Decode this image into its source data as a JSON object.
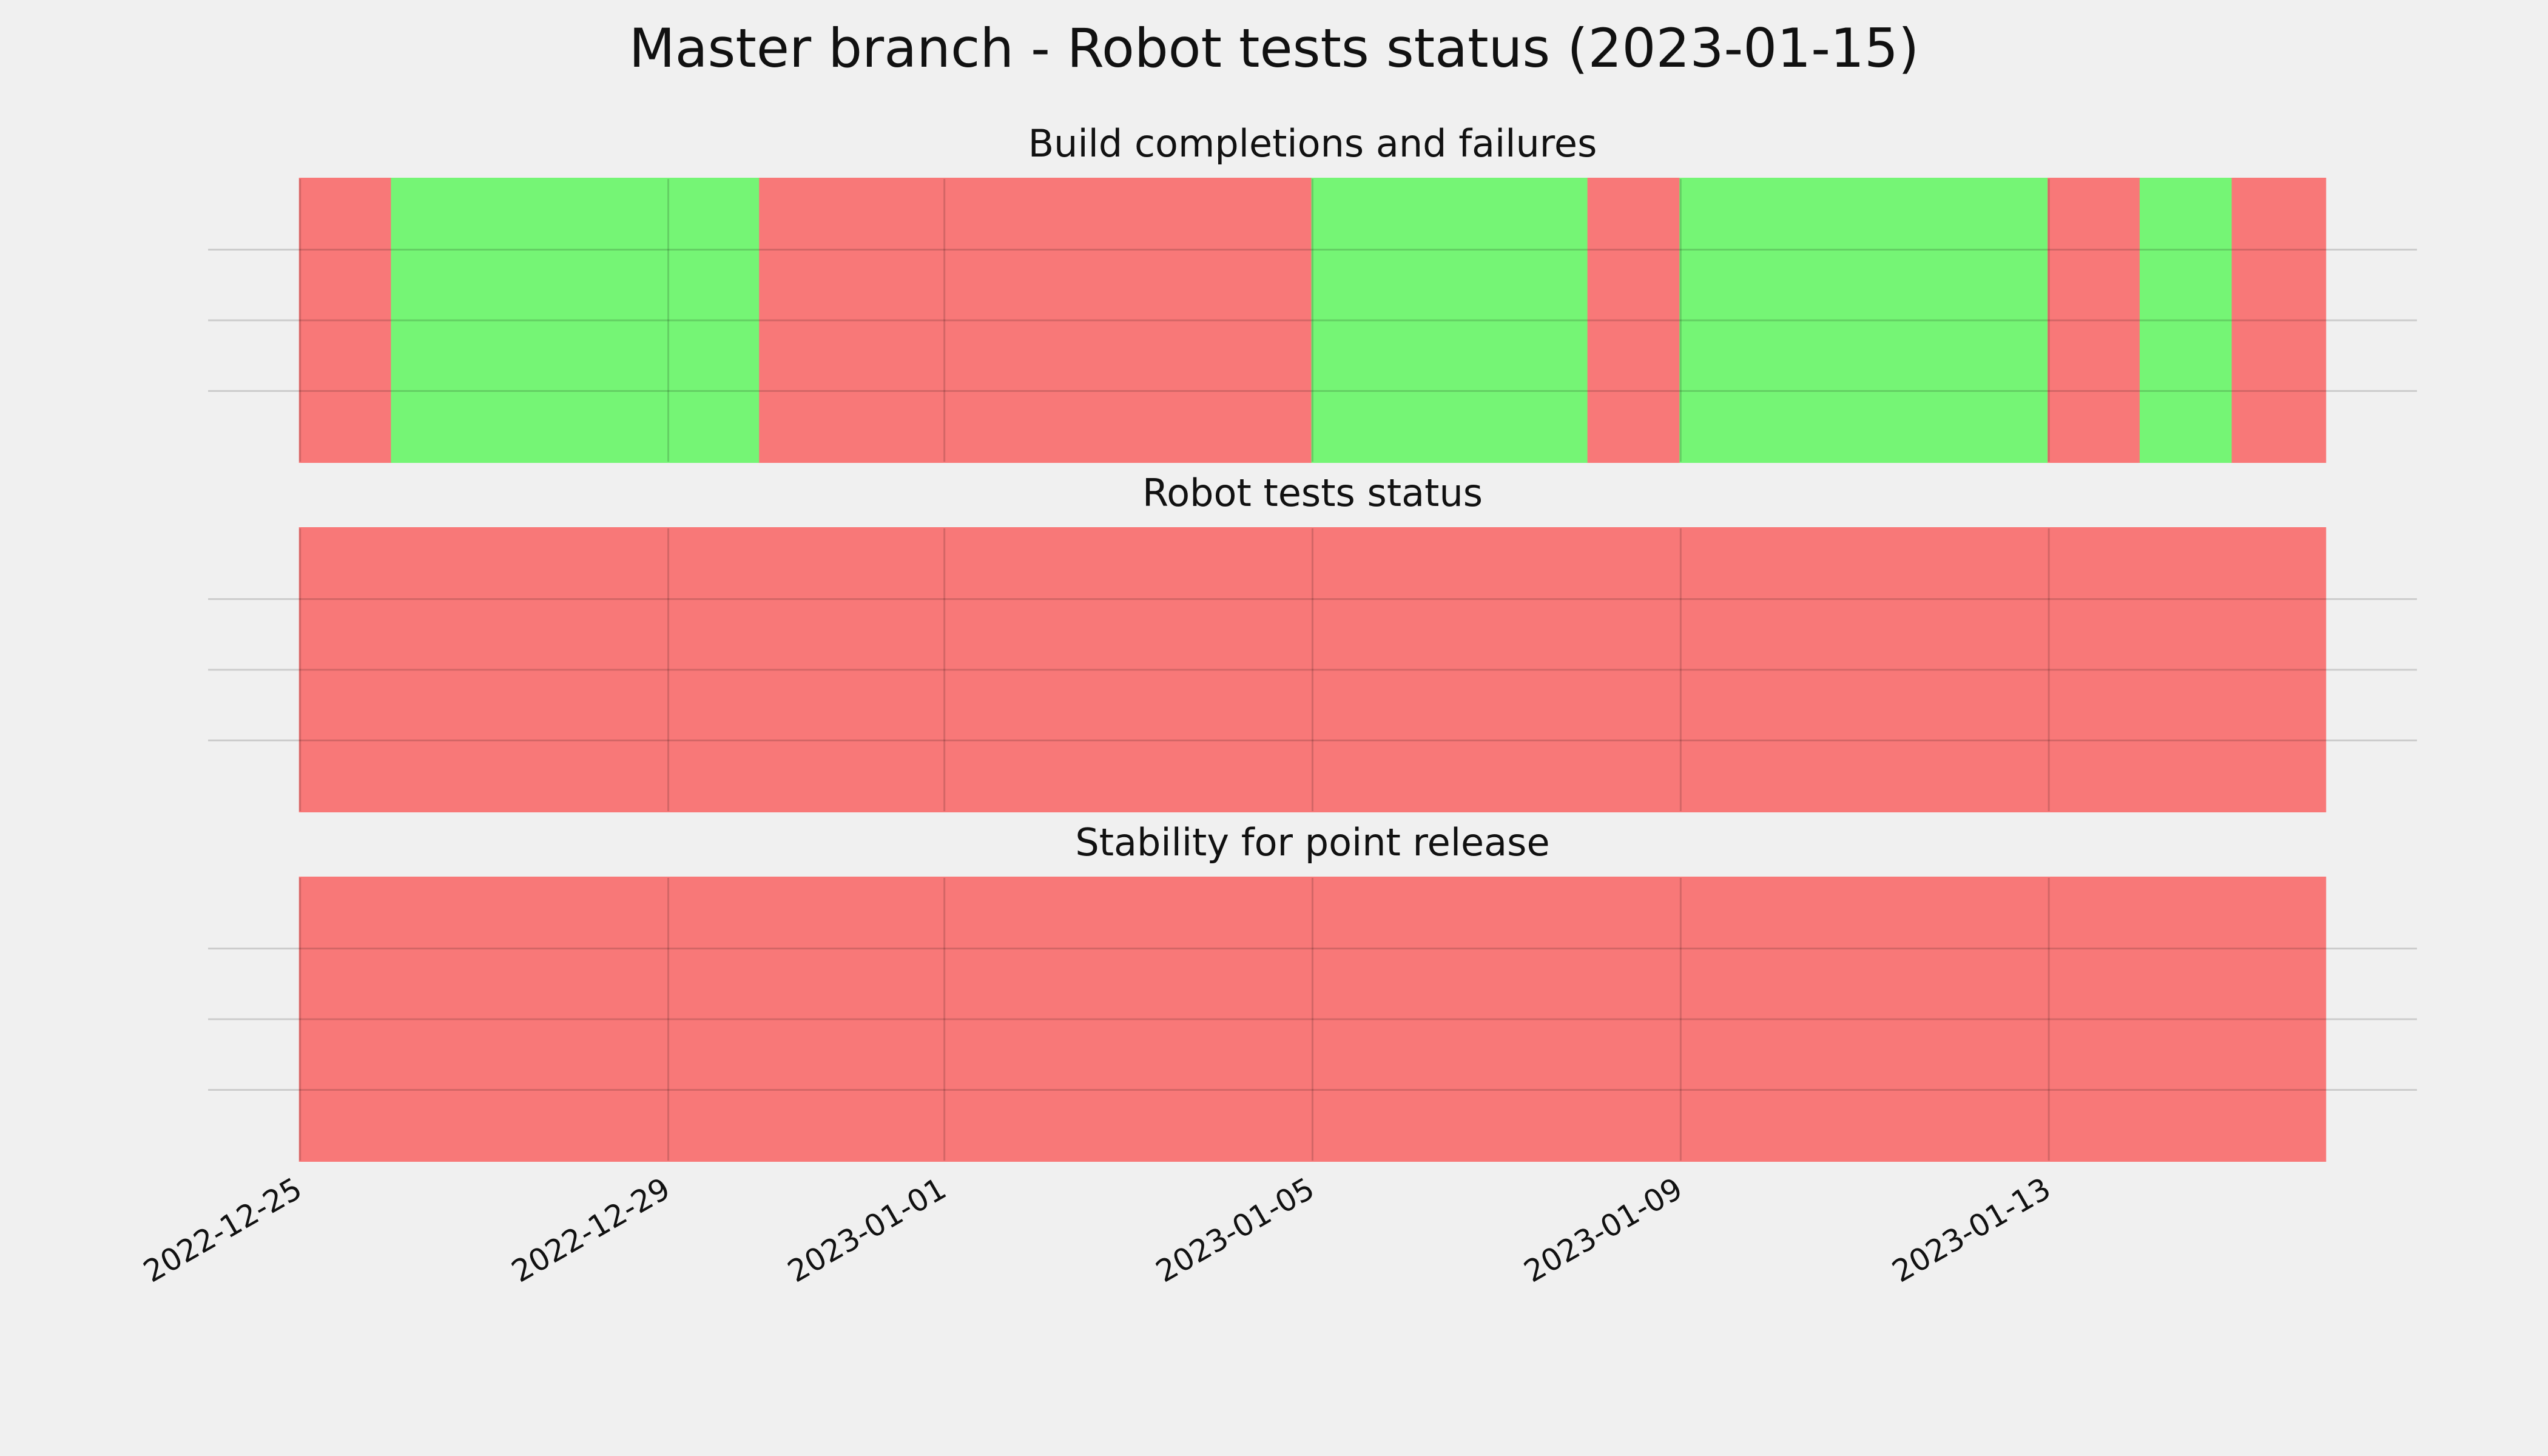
{
  "title": "Master branch - Robot tests status (2023-01-15)",
  "chart_data": [
    {
      "type": "timeline",
      "title": "Build completions and failures",
      "x": [
        "2022-12-25",
        "2022-12-26",
        "2022-12-30",
        "2023-01-05",
        "2023-01-08",
        "2023-01-09",
        "2023-01-13",
        "2023-01-14",
        "2023-01-15",
        "2023-01-16"
      ],
      "colors": [
        "#f87878",
        "#75f575",
        "#f87878",
        "#75f575",
        "#f87878",
        "#75f575",
        "#f87878",
        "#75f575",
        "#f87878"
      ],
      "xlim": [
        "2022-12-24",
        "2023-01-17"
      ],
      "xticks": [
        "2022-12-25",
        "2022-12-29",
        "2023-01-01",
        "2023-01-05",
        "2023-01-09",
        "2023-01-13"
      ],
      "ylim": [
        0,
        1
      ],
      "yticks": [
        0.25,
        0.5,
        0.75
      ],
      "grid": true
    },
    {
      "type": "timeline",
      "title": "Robot tests status",
      "x": [
        "2022-12-25",
        "2023-01-16"
      ],
      "colors": [
        "#f87878"
      ],
      "xlim": [
        "2022-12-24",
        "2023-01-17"
      ],
      "xticks": [
        "2022-12-25",
        "2022-12-29",
        "2023-01-01",
        "2023-01-05",
        "2023-01-09",
        "2023-01-13"
      ],
      "ylim": [
        0,
        1
      ],
      "yticks": [
        0.25,
        0.5,
        0.75
      ],
      "grid": true
    },
    {
      "type": "timeline",
      "title": "Stability for point release",
      "x": [
        "2022-12-25",
        "2023-01-16"
      ],
      "colors": [
        "#f87878"
      ],
      "xlim": [
        "2022-12-24",
        "2023-01-17"
      ],
      "xticks": [
        "2022-12-25",
        "2022-12-29",
        "2023-01-01",
        "2023-01-05",
        "2023-01-09",
        "2023-01-13"
      ],
      "ylim": [
        0,
        1
      ],
      "yticks": [
        0.25,
        0.5,
        0.75
      ],
      "grid": true
    }
  ]
}
